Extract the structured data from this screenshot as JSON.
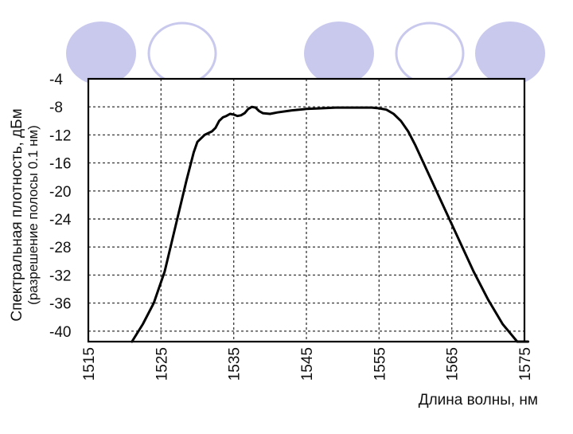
{
  "slide": {
    "decor_circles": [
      {
        "style": "filled",
        "color": "#c9c9ee"
      },
      {
        "style": "outline",
        "color": "#c9c9ee"
      },
      {
        "style": "filled",
        "color": "#c9c9ee"
      },
      {
        "style": "outline",
        "color": "#c9c9ee"
      },
      {
        "style": "filled",
        "color": "#c9c9ee"
      }
    ]
  },
  "chart_data": {
    "type": "line",
    "title": "",
    "ylabel": [
      "Спектральная плотность, дБм",
      "(разрешение полосы 0.1 нм)"
    ],
    "xlabel": "Длина волны, нм",
    "xlim": [
      1515,
      1575
    ],
    "ylim": [
      -41.5,
      -4
    ],
    "xticks": [
      1515,
      1525,
      1535,
      1545,
      1555,
      1565,
      1575
    ],
    "yticks": [
      -4,
      -8,
      -12,
      -16,
      -20,
      -24,
      -28,
      -32,
      -36,
      -40
    ],
    "grid": true,
    "line_color": "#000000",
    "series": [
      {
        "name": "",
        "x": [
          1521.0,
          1522.5,
          1524.0,
          1525.5,
          1527.0,
          1528.5,
          1529.5,
          1530.0,
          1531.0,
          1532.0,
          1532.5,
          1533.0,
          1533.5,
          1534.0,
          1534.5,
          1535.0,
          1535.5,
          1536.0,
          1536.5,
          1537.0,
          1537.5,
          1538.0,
          1538.5,
          1539.0,
          1540.0,
          1541.0,
          1543.0,
          1545.0,
          1547.0,
          1549.0,
          1551.0,
          1553.0,
          1554.0,
          1555.0,
          1556.0,
          1557.0,
          1558.0,
          1559.0,
          1560.0,
          1562.0,
          1564.0,
          1566.0,
          1568.0,
          1570.0,
          1572.0,
          1574.0,
          1575.5
        ],
        "y": [
          -41.5,
          -39.0,
          -36.0,
          -31.5,
          -25.0,
          -18.5,
          -14.5,
          -13.0,
          -12.0,
          -11.5,
          -11.0,
          -10.0,
          -9.5,
          -9.3,
          -9.0,
          -9.1,
          -9.3,
          -9.2,
          -8.9,
          -8.3,
          -8.0,
          -8.1,
          -8.6,
          -8.9,
          -9.0,
          -8.8,
          -8.5,
          -8.3,
          -8.2,
          -8.1,
          -8.1,
          -8.1,
          -8.1,
          -8.2,
          -8.4,
          -9.0,
          -10.0,
          -11.5,
          -13.5,
          -18.0,
          -22.5,
          -27.0,
          -31.5,
          -35.5,
          -39.0,
          -41.5,
          -42.0
        ]
      }
    ]
  }
}
